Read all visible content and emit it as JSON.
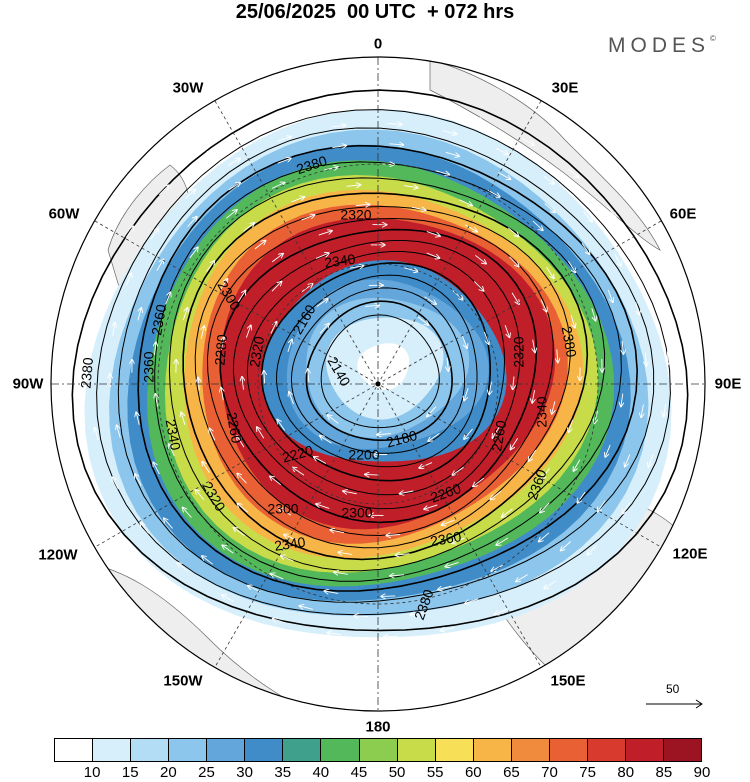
{
  "header": {
    "date": "25/06/2025",
    "time": "00 UTC",
    "lead": "+ 072 hrs"
  },
  "brand": {
    "name": "MODES",
    "mark": "©"
  },
  "longitude_labels": {
    "lon_0": "0",
    "lon_30e": "30E",
    "lon_60e": "60E",
    "lon_90e": "90E",
    "lon_120e": "120E",
    "lon_150e": "150E",
    "lon_180": "180",
    "lon_150w": "150W",
    "lon_120w": "120W",
    "lon_90w": "90W",
    "lon_60w": "60W",
    "lon_30w": "30W"
  },
  "reference_vector": {
    "label": "50"
  },
  "colorbar": {
    "colors": [
      "#ffffff",
      "#d6effb",
      "#b3ddf5",
      "#8cc6ec",
      "#63a6db",
      "#3f8cc8",
      "#3fa08c",
      "#52b85a",
      "#8ccd4f",
      "#c8dc4a",
      "#f7e058",
      "#f7b548",
      "#f08a3c",
      "#e86033",
      "#d93a2e",
      "#c01f2a",
      "#9c1322"
    ],
    "ticks": [
      "10",
      "15",
      "20",
      "25",
      "30",
      "35",
      "40",
      "45",
      "50",
      "55",
      "60",
      "65",
      "70",
      "75",
      "80",
      "85",
      "90"
    ]
  },
  "contour_labels": {
    "c1": "2380",
    "c2": "2320",
    "c3": "2340",
    "c4": "2300",
    "c5": "2360",
    "c6": "2280",
    "c7": "2320",
    "c8": "2160",
    "c9": "2320",
    "c10": "2380",
    "c11": "2380",
    "c12": "2360",
    "c13": "2140",
    "c14": "2340",
    "c15": "2340",
    "c16": "2260",
    "c17": "2260",
    "c18": "2180",
    "c19": "2220",
    "c20": "2200",
    "c21": "2260",
    "c22": "2360",
    "c23": "2320",
    "c24": "2300",
    "c25": "2300",
    "c26": "2340",
    "c27": "2360",
    "c28": "2380"
  },
  "jet_speed_levels": [
    {
      "level": "15",
      "color": "#d6effb"
    },
    {
      "level": "25",
      "color": "#8cc6ec"
    },
    {
      "level": "35",
      "color": "#3f8cc8"
    },
    {
      "level": "45",
      "color": "#52b85a"
    },
    {
      "level": "55",
      "color": "#c8dc4a"
    },
    {
      "level": "65",
      "color": "#f7b548"
    },
    {
      "level": "75",
      "color": "#e86033"
    },
    {
      "level": "85",
      "color": "#c01f2a"
    }
  ]
}
